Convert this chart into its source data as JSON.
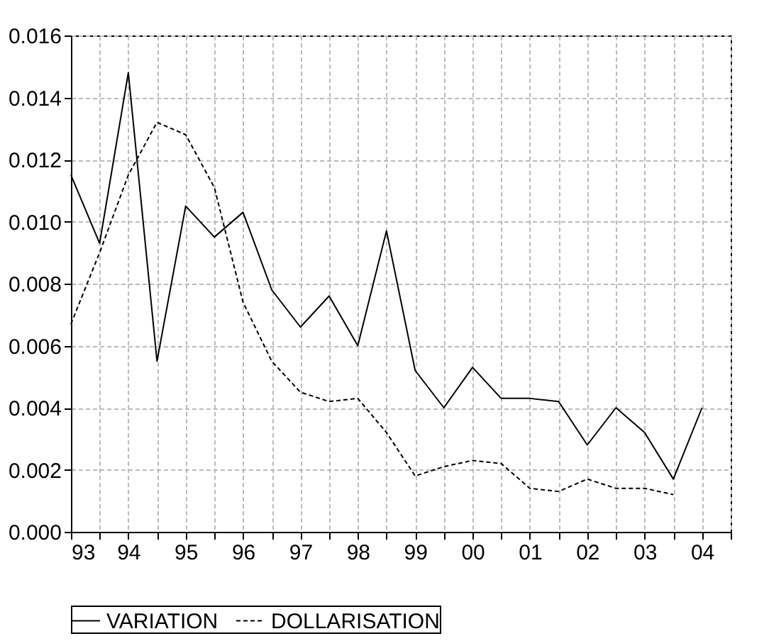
{
  "chart_data": {
    "type": "line",
    "x": [
      1993,
      1993.5,
      1994,
      1994.5,
      1995,
      1995.5,
      1996,
      1996.5,
      1997,
      1997.5,
      1998,
      1998.5,
      1999,
      1999.5,
      2000,
      2000.5,
      2001,
      2001.5,
      2002,
      2002.5,
      2003,
      2003.5,
      2004
    ],
    "series": [
      {
        "name": "VARIATION",
        "color": "#000000",
        "line_style": "solid",
        "values": [
          0.0115,
          0.0093,
          0.0148,
          0.0055,
          0.0105,
          0.0095,
          0.0103,
          0.0078,
          0.0066,
          0.0076,
          0.006,
          0.0097,
          0.0052,
          0.004,
          0.0053,
          0.0043,
          0.0043,
          0.0042,
          0.0028,
          0.004,
          0.0032,
          0.0017,
          0.004
        ]
      },
      {
        "name": "DOLLARISATION",
        "color": "#000000",
        "line_style": "dashed",
        "values": [
          0.0067,
          0.009,
          0.0115,
          0.0132,
          0.0128,
          0.0111,
          0.0074,
          0.0055,
          0.0045,
          0.0042,
          0.0043,
          0.0032,
          0.0018,
          0.0021,
          0.0023,
          0.0022,
          0.0014,
          0.0013,
          0.0017,
          0.0014,
          0.0014,
          0.0012,
          null
        ]
      }
    ],
    "xlim": [
      1993,
      2004.5
    ],
    "xticks": [
      {
        "value": 1993,
        "label": "93"
      },
      {
        "value": 1993.5,
        "label": null
      },
      {
        "value": 1994,
        "label": "94"
      },
      {
        "value": 1994.5,
        "label": null
      },
      {
        "value": 1995,
        "label": "95"
      },
      {
        "value": 1995.5,
        "label": null
      },
      {
        "value": 1996,
        "label": "96"
      },
      {
        "value": 1996.5,
        "label": null
      },
      {
        "value": 1997,
        "label": "97"
      },
      {
        "value": 1997.5,
        "label": null
      },
      {
        "value": 1998,
        "label": "98"
      },
      {
        "value": 1998.5,
        "label": null
      },
      {
        "value": 1999,
        "label": "99"
      },
      {
        "value": 1999.5,
        "label": null
      },
      {
        "value": 2000,
        "label": "00"
      },
      {
        "value": 2000.5,
        "label": null
      },
      {
        "value": 2001,
        "label": "01"
      },
      {
        "value": 2001.5,
        "label": null
      },
      {
        "value": 2002,
        "label": "02"
      },
      {
        "value": 2002.5,
        "label": null
      },
      {
        "value": 2003,
        "label": "03"
      },
      {
        "value": 2003.5,
        "label": null
      },
      {
        "value": 2004,
        "label": "04"
      },
      {
        "value": 2004.5,
        "label": null
      }
    ],
    "ylim": [
      0,
      0.016
    ],
    "yticks": [
      {
        "value": 0,
        "label": "0.000"
      },
      {
        "value": 0.002,
        "label": "0.002"
      },
      {
        "value": 0.004,
        "label": "0.004"
      },
      {
        "value": 0.006,
        "label": "0.006"
      },
      {
        "value": 0.008,
        "label": "0.008"
      },
      {
        "value": 0.01,
        "label": "0.010"
      },
      {
        "value": 0.012,
        "label": "0.012"
      },
      {
        "value": 0.014,
        "label": "0.014"
      },
      {
        "value": 0.016,
        "label": "0.016"
      }
    ],
    "grid": true,
    "legend": "bottom"
  }
}
